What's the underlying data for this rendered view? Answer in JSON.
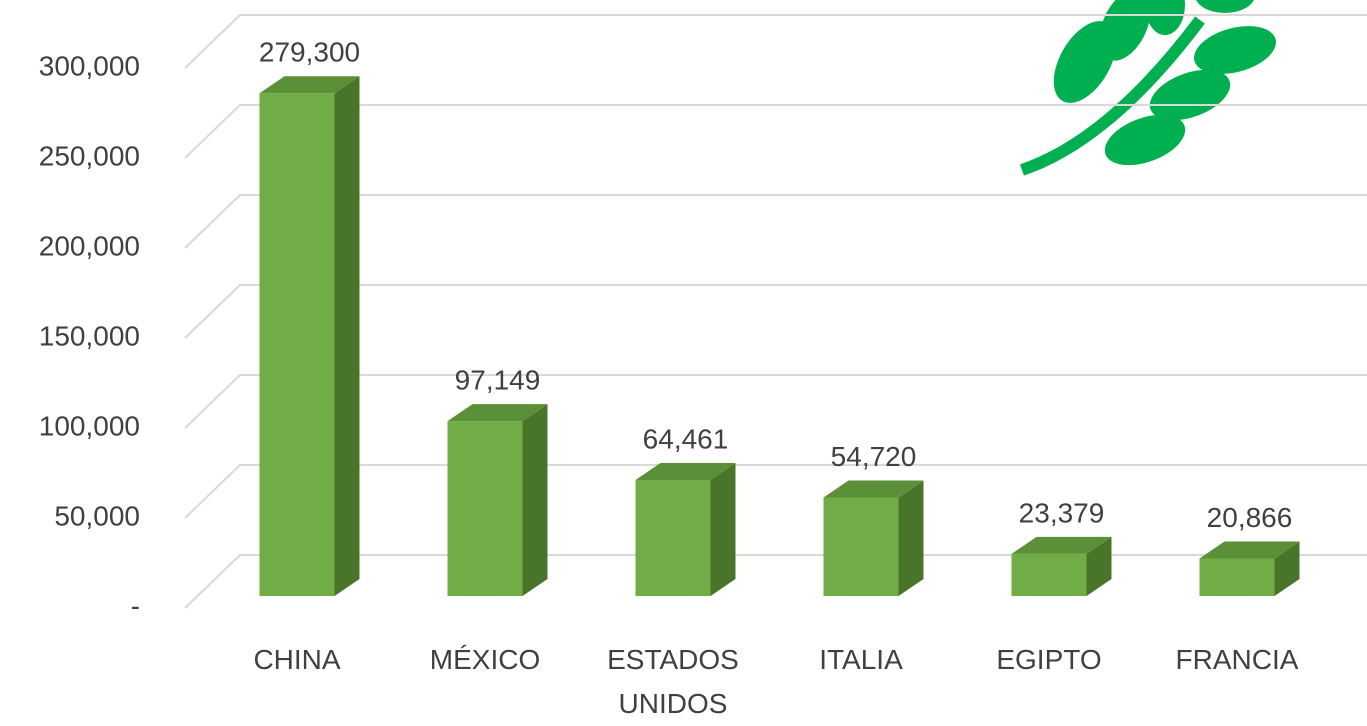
{
  "chart_data": {
    "type": "bar3d",
    "categories": [
      "CHINA",
      "MÉXICO",
      "ESTADOS UNIDOS",
      "ITALIA",
      "EGIPTO",
      "FRANCIA"
    ],
    "values": [
      279300,
      97149,
      64461,
      54720,
      23379,
      20866
    ],
    "value_labels": [
      "279,300",
      "97,149",
      "64,461",
      "54,720",
      "23,379",
      "20,866"
    ],
    "color": "#70ad47",
    "ylim": [
      0,
      300000
    ],
    "yticks": [
      {
        "value": 0,
        "label": "-"
      },
      {
        "value": 50000,
        "label": "50,000"
      },
      {
        "value": 100000,
        "label": "100,000"
      },
      {
        "value": 150000,
        "label": "150,000"
      },
      {
        "value": 200000,
        "label": "200,000"
      },
      {
        "value": 250000,
        "label": "250,000"
      },
      {
        "value": 300000,
        "label": "300,000"
      }
    ],
    "grid": true
  }
}
